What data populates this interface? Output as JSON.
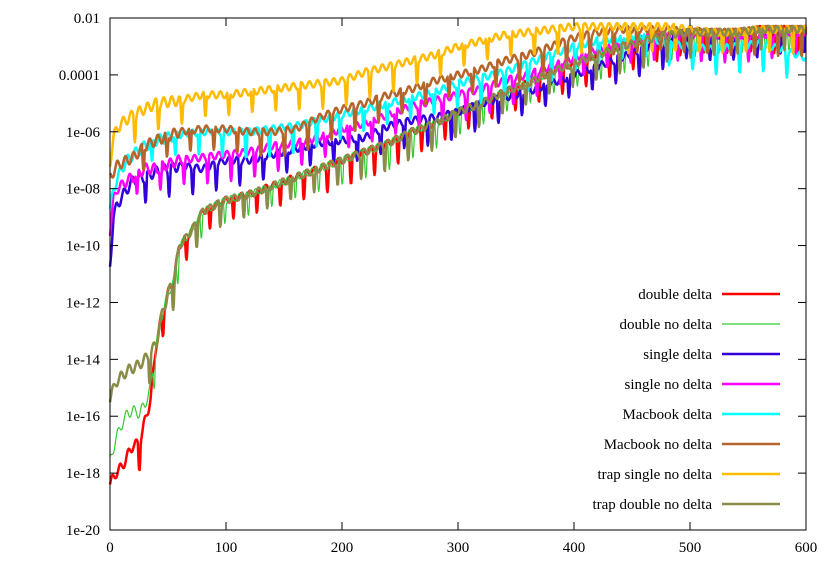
{
  "chart_data": {
    "type": "line",
    "title": "",
    "xlabel": "",
    "ylabel": "",
    "xlim": [
      0,
      600
    ],
    "ylim_log10": [
      -20,
      -2
    ],
    "x_ticks": [
      0,
      100,
      200,
      300,
      400,
      500,
      600
    ],
    "x_tick_labels": [
      "0",
      "100",
      "200",
      "300",
      "400",
      "500",
      "600"
    ],
    "y_ticks_log10": [
      -2,
      -4,
      -6,
      -8,
      -10,
      -12,
      -14,
      -16,
      -18,
      -20
    ],
    "y_tick_labels": [
      "0.01",
      "0.0001",
      "1e-06",
      "1e-08",
      "1e-10",
      "1e-12",
      "1e-14",
      "1e-16",
      "1e-18",
      "1e-20"
    ],
    "y_scale": "log",
    "grid": false,
    "legend_position": "right",
    "series": [
      {
        "name": "double delta",
        "color": "#ff0000",
        "width": 2.5,
        "points": [
          [
            0,
            -18.4
          ],
          [
            5,
            -18.0
          ],
          [
            10,
            -17.8
          ],
          [
            15,
            -17.4
          ],
          [
            20,
            -17.0
          ],
          [
            25,
            -17.0
          ],
          [
            30,
            -16.2
          ],
          [
            35,
            -15.4
          ],
          [
            40,
            -13.4
          ],
          [
            45,
            -12.4
          ],
          [
            50,
            -11.7
          ],
          [
            55,
            -11.2
          ],
          [
            60,
            -10.0
          ],
          [
            70,
            -9.5
          ],
          [
            80,
            -8.8
          ],
          [
            90,
            -8.6
          ],
          [
            100,
            -8.4
          ],
          [
            120,
            -8.2
          ],
          [
            140,
            -7.9
          ],
          [
            160,
            -7.6
          ],
          [
            180,
            -7.3
          ],
          [
            200,
            -7.0
          ],
          [
            220,
            -6.7
          ],
          [
            240,
            -6.4
          ],
          [
            260,
            -6.0
          ],
          [
            280,
            -5.7
          ],
          [
            300,
            -5.3
          ],
          [
            320,
            -5.0
          ],
          [
            340,
            -4.6
          ],
          [
            360,
            -4.3
          ],
          [
            380,
            -3.9
          ],
          [
            400,
            -3.6
          ],
          [
            420,
            -3.3
          ],
          [
            440,
            -3.0
          ],
          [
            460,
            -2.8
          ],
          [
            480,
            -2.6
          ],
          [
            500,
            -2.5
          ],
          [
            520,
            -2.5
          ],
          [
            540,
            -2.5
          ],
          [
            560,
            -2.4
          ],
          [
            580,
            -2.4
          ],
          [
            600,
            -2.4
          ]
        ]
      },
      {
        "name": "double no delta",
        "color": "#33cc33",
        "width": 1.2,
        "points": [
          [
            0,
            -17.6
          ],
          [
            5,
            -16.8
          ],
          [
            10,
            -16.3
          ],
          [
            15,
            -15.9
          ],
          [
            20,
            -15.8
          ],
          [
            25,
            -15.9
          ],
          [
            30,
            -15.6
          ],
          [
            35,
            -15.0
          ],
          [
            40,
            -13.4
          ],
          [
            45,
            -12.4
          ],
          [
            50,
            -11.7
          ],
          [
            55,
            -11.2
          ],
          [
            60,
            -10.0
          ],
          [
            70,
            -9.5
          ],
          [
            80,
            -8.8
          ],
          [
            90,
            -8.6
          ],
          [
            100,
            -8.4
          ],
          [
            120,
            -8.2
          ],
          [
            140,
            -7.9
          ],
          [
            160,
            -7.6
          ],
          [
            180,
            -7.3
          ],
          [
            200,
            -7.0
          ],
          [
            220,
            -6.7
          ],
          [
            240,
            -6.4
          ],
          [
            260,
            -6.0
          ],
          [
            280,
            -5.7
          ],
          [
            300,
            -5.3
          ],
          [
            320,
            -5.0
          ],
          [
            340,
            -4.6
          ],
          [
            360,
            -4.3
          ],
          [
            380,
            -3.9
          ],
          [
            400,
            -3.6
          ],
          [
            420,
            -3.3
          ],
          [
            440,
            -3.0
          ],
          [
            460,
            -2.8
          ],
          [
            480,
            -2.6
          ],
          [
            500,
            -2.5
          ],
          [
            520,
            -2.5
          ],
          [
            540,
            -2.5
          ],
          [
            560,
            -2.4
          ],
          [
            580,
            -2.4
          ],
          [
            600,
            -2.4
          ]
        ]
      },
      {
        "name": "single delta",
        "color": "#3300dd",
        "width": 2.5,
        "points": [
          [
            0,
            -10.7
          ],
          [
            3,
            -9.0
          ],
          [
            6,
            -8.6
          ],
          [
            10,
            -8.3
          ],
          [
            15,
            -8.0
          ],
          [
            20,
            -7.7
          ],
          [
            30,
            -7.6
          ],
          [
            40,
            -7.4
          ],
          [
            60,
            -7.2
          ],
          [
            80,
            -7.3
          ],
          [
            100,
            -7.0
          ],
          [
            120,
            -7.0
          ],
          [
            140,
            -6.8
          ],
          [
            160,
            -6.6
          ],
          [
            180,
            -6.4
          ],
          [
            200,
            -6.3
          ],
          [
            220,
            -6.2
          ],
          [
            240,
            -5.8
          ],
          [
            260,
            -5.6
          ],
          [
            280,
            -5.5
          ],
          [
            300,
            -5.3
          ],
          [
            320,
            -5.0
          ],
          [
            340,
            -4.8
          ],
          [
            360,
            -4.6
          ],
          [
            380,
            -4.3
          ],
          [
            400,
            -4.0
          ],
          [
            420,
            -3.7
          ],
          [
            440,
            -3.4
          ],
          [
            460,
            -3.1
          ],
          [
            480,
            -2.8
          ],
          [
            500,
            -2.4
          ],
          [
            520,
            -2.6
          ],
          [
            540,
            -2.6
          ],
          [
            560,
            -2.6
          ],
          [
            580,
            -2.5
          ],
          [
            600,
            -2.5
          ]
        ]
      },
      {
        "name": "single no delta",
        "color": "#ff00ff",
        "width": 2.5,
        "points": [
          [
            0,
            -9.5
          ],
          [
            3,
            -8.4
          ],
          [
            6,
            -8.0
          ],
          [
            10,
            -7.9
          ],
          [
            15,
            -7.7
          ],
          [
            20,
            -7.6
          ],
          [
            30,
            -7.3
          ],
          [
            40,
            -7.3
          ],
          [
            60,
            -7.0
          ],
          [
            80,
            -6.9
          ],
          [
            100,
            -6.8
          ],
          [
            120,
            -6.7
          ],
          [
            140,
            -6.5
          ],
          [
            160,
            -6.4
          ],
          [
            180,
            -6.2
          ],
          [
            200,
            -5.9
          ],
          [
            220,
            -5.7
          ],
          [
            240,
            -5.4
          ],
          [
            260,
            -5.1
          ],
          [
            280,
            -4.9
          ],
          [
            300,
            -4.7
          ],
          [
            320,
            -4.5
          ],
          [
            340,
            -4.2
          ],
          [
            360,
            -4.0
          ],
          [
            380,
            -3.7
          ],
          [
            400,
            -3.4
          ],
          [
            420,
            -3.1
          ],
          [
            440,
            -2.9
          ],
          [
            460,
            -2.7
          ],
          [
            480,
            -2.6
          ],
          [
            500,
            -2.6
          ],
          [
            520,
            -2.6
          ],
          [
            540,
            -2.6
          ],
          [
            560,
            -2.6
          ],
          [
            580,
            -2.5
          ],
          [
            600,
            -2.5
          ]
        ]
      },
      {
        "name": "Macbook delta",
        "color": "#00ffff",
        "width": 2.5,
        "points": [
          [
            0,
            -8.8
          ],
          [
            3,
            -8.0
          ],
          [
            6,
            -7.7
          ],
          [
            10,
            -7.3
          ],
          [
            15,
            -7.0
          ],
          [
            20,
            -6.8
          ],
          [
            30,
            -6.5
          ],
          [
            40,
            -6.3
          ],
          [
            60,
            -6.1
          ],
          [
            80,
            -6.0
          ],
          [
            100,
            -6.0
          ],
          [
            120,
            -6.0
          ],
          [
            140,
            -5.9
          ],
          [
            160,
            -5.8
          ],
          [
            180,
            -5.6
          ],
          [
            200,
            -5.4
          ],
          [
            220,
            -5.2
          ],
          [
            240,
            -5.0
          ],
          [
            260,
            -4.8
          ],
          [
            280,
            -4.6
          ],
          [
            300,
            -4.3
          ],
          [
            320,
            -4.1
          ],
          [
            340,
            -3.9
          ],
          [
            360,
            -3.6
          ],
          [
            380,
            -3.3
          ],
          [
            400,
            -3.0
          ],
          [
            420,
            -2.8
          ],
          [
            440,
            -2.7
          ],
          [
            460,
            -2.6
          ],
          [
            480,
            -2.9
          ],
          [
            500,
            -3.0
          ],
          [
            520,
            -3.1
          ],
          [
            540,
            -3.0
          ],
          [
            560,
            -2.9
          ],
          [
            580,
            -3.1
          ],
          [
            600,
            -3.4
          ]
        ]
      },
      {
        "name": "Macbook no delta",
        "color": "#b5652a",
        "width": 2.5,
        "points": [
          [
            0,
            -7.6
          ],
          [
            3,
            -7.4
          ],
          [
            6,
            -7.2
          ],
          [
            10,
            -7.1
          ],
          [
            15,
            -7.0
          ],
          [
            20,
            -6.9
          ],
          [
            30,
            -6.5
          ],
          [
            40,
            -6.3
          ],
          [
            60,
            -6.0
          ],
          [
            80,
            -5.9
          ],
          [
            100,
            -5.9
          ],
          [
            120,
            -6.0
          ],
          [
            140,
            -6.0
          ],
          [
            160,
            -5.9
          ],
          [
            180,
            -5.5
          ],
          [
            200,
            -5.2
          ],
          [
            220,
            -5.0
          ],
          [
            240,
            -4.7
          ],
          [
            260,
            -4.5
          ],
          [
            280,
            -4.2
          ],
          [
            300,
            -4.0
          ],
          [
            320,
            -3.8
          ],
          [
            340,
            -3.5
          ],
          [
            360,
            -3.3
          ],
          [
            380,
            -3.0
          ],
          [
            400,
            -2.7
          ],
          [
            420,
            -2.5
          ],
          [
            440,
            -2.4
          ],
          [
            460,
            -2.4
          ],
          [
            480,
            -2.4
          ],
          [
            500,
            -2.5
          ],
          [
            520,
            -2.5
          ],
          [
            540,
            -2.5
          ],
          [
            560,
            -2.4
          ],
          [
            580,
            -2.4
          ],
          [
            600,
            -2.4
          ]
        ]
      },
      {
        "name": "trap single no delta",
        "color": "#ffbb00",
        "width": 2.5,
        "points": [
          [
            0,
            -7.1
          ],
          [
            3,
            -6.2
          ],
          [
            6,
            -5.9
          ],
          [
            10,
            -5.7
          ],
          [
            20,
            -5.4
          ],
          [
            30,
            -5.2
          ],
          [
            40,
            -5.0
          ],
          [
            60,
            -4.9
          ],
          [
            80,
            -4.7
          ],
          [
            100,
            -4.7
          ],
          [
            120,
            -4.6
          ],
          [
            140,
            -4.5
          ],
          [
            160,
            -4.4
          ],
          [
            180,
            -4.3
          ],
          [
            200,
            -4.2
          ],
          [
            220,
            -3.9
          ],
          [
            240,
            -3.7
          ],
          [
            260,
            -3.5
          ],
          [
            280,
            -3.3
          ],
          [
            300,
            -3.0
          ],
          [
            320,
            -2.8
          ],
          [
            340,
            -2.6
          ],
          [
            360,
            -2.5
          ],
          [
            380,
            -2.4
          ],
          [
            400,
            -2.3
          ],
          [
            420,
            -2.3
          ],
          [
            440,
            -2.3
          ],
          [
            460,
            -2.3
          ],
          [
            480,
            -2.3
          ],
          [
            500,
            -2.4
          ],
          [
            520,
            -2.5
          ],
          [
            540,
            -2.5
          ],
          [
            560,
            -2.4
          ],
          [
            580,
            -2.4
          ],
          [
            600,
            -2.4
          ]
        ]
      },
      {
        "name": "trap double no delta",
        "color": "#8b8b4a",
        "width": 2.5,
        "points": [
          [
            0,
            -15.4
          ],
          [
            5,
            -14.8
          ],
          [
            10,
            -14.6
          ],
          [
            15,
            -14.4
          ],
          [
            20,
            -14.3
          ],
          [
            25,
            -14.2
          ],
          [
            30,
            -14.0
          ],
          [
            35,
            -13.8
          ],
          [
            40,
            -13.4
          ],
          [
            45,
            -12.4
          ],
          [
            50,
            -11.7
          ],
          [
            55,
            -11.2
          ],
          [
            60,
            -10.0
          ],
          [
            70,
            -9.5
          ],
          [
            80,
            -8.8
          ],
          [
            90,
            -8.6
          ],
          [
            100,
            -8.4
          ],
          [
            120,
            -8.2
          ],
          [
            140,
            -7.9
          ],
          [
            160,
            -7.6
          ],
          [
            180,
            -7.3
          ],
          [
            200,
            -7.0
          ],
          [
            220,
            -6.7
          ],
          [
            240,
            -6.4
          ],
          [
            260,
            -6.0
          ],
          [
            280,
            -5.7
          ],
          [
            300,
            -5.3
          ],
          [
            320,
            -5.0
          ],
          [
            340,
            -4.6
          ],
          [
            360,
            -4.3
          ],
          [
            380,
            -3.9
          ],
          [
            400,
            -3.6
          ],
          [
            420,
            -3.3
          ],
          [
            440,
            -3.0
          ],
          [
            460,
            -2.8
          ],
          [
            480,
            -2.6
          ],
          [
            500,
            -2.5
          ],
          [
            520,
            -2.5
          ],
          [
            540,
            -2.5
          ],
          [
            560,
            -2.4
          ],
          [
            580,
            -2.4
          ],
          [
            600,
            -2.4
          ]
        ]
      }
    ]
  }
}
